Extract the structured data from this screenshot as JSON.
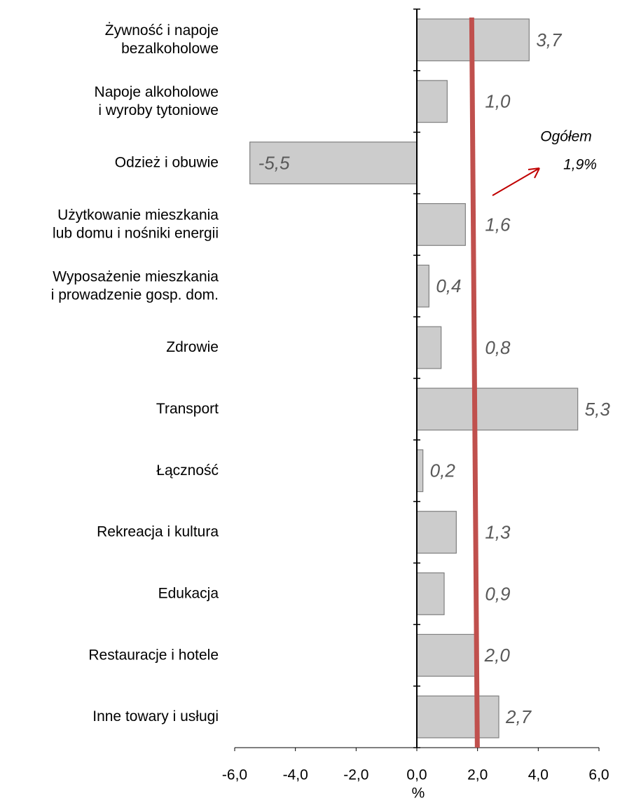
{
  "chart_data": {
    "type": "bar",
    "orientation": "horizontal",
    "categories": [
      "Żywność i napoje\nbezalkoholowe",
      "Napoje alkoholowe\ni wyroby tytoniowe",
      "Odzież i obuwie",
      "Użytkowanie mieszkania\nlub domu i nośniki energii",
      "Wyposażenie mieszkania\ni prowadzenie gosp. dom.",
      "Zdrowie",
      "Transport",
      "Łączność",
      "Rekreacja i kultura",
      "Edukacja",
      "Restauracje i hotele",
      "Inne towary i usługi"
    ],
    "values": [
      3.7,
      1.0,
      -5.5,
      1.6,
      0.4,
      0.8,
      5.3,
      0.2,
      1.3,
      0.9,
      2.0,
      2.7
    ],
    "value_labels": [
      "3,7",
      "1,0",
      "-5,5",
      "1,6",
      "0,4",
      "0,8",
      "5,3",
      "0,2",
      "1,3",
      "0,9",
      "2,0",
      "2,7"
    ],
    "color": "#cccccc",
    "xlim": [
      -6,
      6
    ],
    "xticks": [
      {
        "value": -6,
        "label": "-6,0"
      },
      {
        "value": -4,
        "label": "-4,0"
      },
      {
        "value": -2,
        "label": "-2,0"
      },
      {
        "value": 0,
        "label": "0,0"
      },
      {
        "value": 2,
        "label": "2,0"
      },
      {
        "value": 4,
        "label": "4,0"
      },
      {
        "value": 6,
        "label": "6,0"
      }
    ],
    "x_label": "%",
    "overall": {
      "label": "Ogółem",
      "value": 1.9,
      "value_label": "1,9%",
      "color": "#c0504d",
      "text_color": "#c00000"
    }
  }
}
